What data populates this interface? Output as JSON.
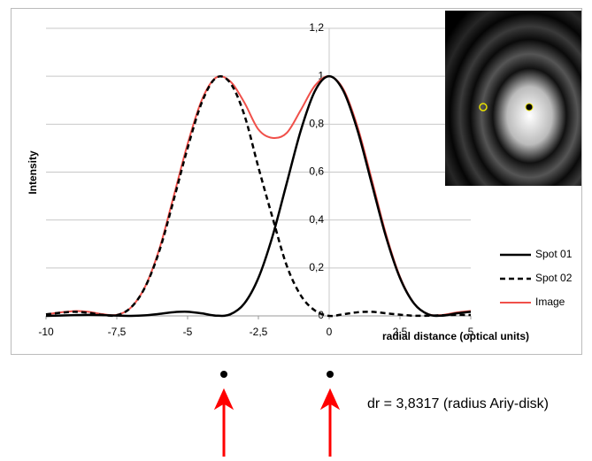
{
  "chart_data": {
    "type": "line",
    "xlabel": "radial distance (optical units)",
    "ylabel": "Intensity",
    "annotation": "dr = 3,8317 (radius Ariy-disk)",
    "x": [
      -10,
      -9.5,
      -9,
      -8.5,
      -8,
      -7.5,
      -7,
      -6.5,
      -6,
      -5.5,
      -5,
      -4.5,
      -4,
      -3.5,
      -3,
      -2.5,
      -2,
      -1.5,
      -1,
      -0.5,
      0,
      0.5,
      1,
      1.5,
      2,
      2.5,
      3,
      3.5,
      4,
      4.5,
      5
    ],
    "series": [
      {
        "name": "Spot 01",
        "color": "#000000",
        "style": "solid",
        "values": [
          0.0001,
          0.0012,
          0.003,
          0.0041,
          0.0034,
          0.0013,
          0,
          0.0022,
          0.0085,
          0.0154,
          0.0172,
          0.0105,
          0.0011,
          0.0062,
          0.0511,
          0.1582,
          0.3326,
          0.5534,
          0.7746,
          0.9391,
          1,
          0.9391,
          0.7746,
          0.5534,
          0.3326,
          0.1582,
          0.0511,
          0.0062,
          0.0011,
          0.0105,
          0.0172
        ]
      },
      {
        "name": "Spot 02",
        "color": "#000000",
        "style": "dashed",
        "values": [
          0.0065,
          0.013,
          0.017,
          0.013,
          0.004,
          0.003,
          0.035,
          0.12,
          0.27,
          0.48,
          0.7,
          0.89,
          0.993,
          0.973,
          0.84,
          0.62,
          0.41,
          0.21,
          0.085,
          0.022,
          0,
          0.007,
          0.015,
          0.017,
          0.011,
          0.005,
          0.0007,
          0.0008,
          0.0027,
          0.004,
          0.0035
        ]
      },
      {
        "name": "Image",
        "color": "#f0504a",
        "style": "solid",
        "values": [
          0.0066,
          0.0142,
          0.02,
          0.0171,
          0.0074,
          0.0043,
          0.035,
          0.1222,
          0.2785,
          0.4954,
          0.7172,
          0.9005,
          0.9941,
          0.9792,
          0.8911,
          0.7782,
          0.7426,
          0.7634,
          0.8596,
          0.9611,
          1,
          0.9461,
          0.7896,
          0.5704,
          0.3436,
          0.1632,
          0.0518,
          0.007,
          0.0038,
          0.0145,
          0.0207
        ]
      }
    ],
    "xlim": [
      -10,
      5
    ],
    "xticks": [
      -10,
      {
        "value": -7.5,
        "label": "-7,5"
      },
      -5,
      {
        "value": -2.5,
        "label": "-2,5"
      },
      0,
      {
        "value": 2.5,
        "label": "2,5"
      },
      5
    ],
    "ylim": [
      0,
      1.2
    ],
    "yticks": [
      0,
      {
        "value": 0.2,
        "label": "0,2"
      },
      {
        "value": 0.4,
        "label": "0,4"
      },
      {
        "value": 0.6,
        "label": "0,6"
      },
      {
        "value": 0.8,
        "label": "0,8"
      },
      1,
      {
        "value": 1.2,
        "label": "1,2"
      }
    ],
    "grid": true
  }
}
